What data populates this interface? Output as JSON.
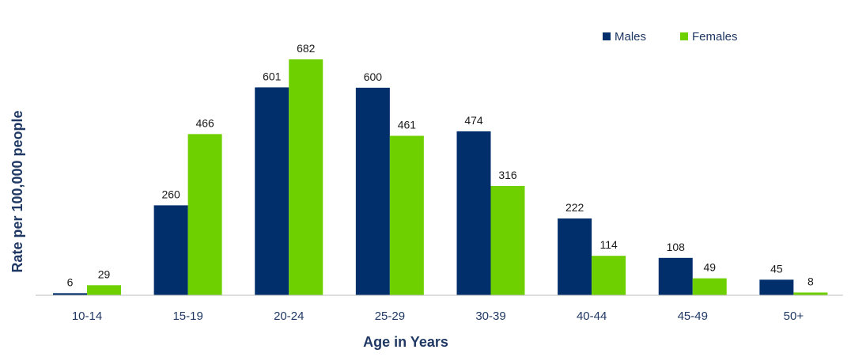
{
  "chart_data": {
    "type": "bar",
    "title": "",
    "xlabel": "Age in Years",
    "ylabel": "Rate per 100,000 people",
    "categories": [
      "10-14",
      "15-19",
      "20-24",
      "25-29",
      "30-39",
      "40-44",
      "45-49",
      "50+"
    ],
    "series": [
      {
        "name": "Males",
        "color": "#002f6c",
        "values": [
          6,
          260,
          601,
          600,
          474,
          222,
          108,
          45
        ]
      },
      {
        "name": "Females",
        "color": "#6fd000",
        "values": [
          29,
          466,
          682,
          461,
          316,
          114,
          49,
          8
        ]
      }
    ],
    "ylim": [
      0,
      682
    ],
    "grid": false,
    "legend_position": "top-right",
    "data_labels": true
  }
}
